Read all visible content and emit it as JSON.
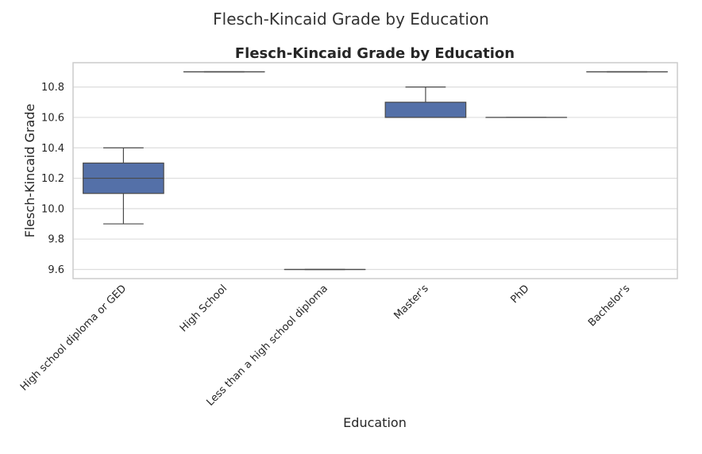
{
  "figure": {
    "suptitle": "Flesch-Kincaid Grade by Education"
  },
  "chart_data": {
    "type": "box",
    "title": "Flesch-Kincaid Grade by Education",
    "xlabel": "Education",
    "ylabel": "Flesch-Kincaid Grade",
    "ylim": [
      9.54,
      10.96
    ],
    "yticks": [
      9.6,
      9.8,
      10.0,
      10.2,
      10.4,
      10.6,
      10.8
    ],
    "ytick_labels": [
      "9.6",
      "9.8",
      "10.0",
      "10.2",
      "10.4",
      "10.6",
      "10.8"
    ],
    "grid": true,
    "categories": [
      "High school diploma or GED",
      "High School",
      "Less than a high school diploma",
      "Master's",
      "PhD",
      "Bachelor's"
    ],
    "boxes": [
      {
        "whisker_low": 9.9,
        "q1": 10.1,
        "median": 10.2,
        "q3": 10.3,
        "whisker_high": 10.4
      },
      {
        "whisker_low": 10.9,
        "q1": 10.9,
        "median": 10.9,
        "q3": 10.9,
        "whisker_high": 10.9
      },
      {
        "whisker_low": 9.6,
        "q1": 9.6,
        "median": 9.6,
        "q3": 9.6,
        "whisker_high": 9.6
      },
      {
        "whisker_low": 10.6,
        "q1": 10.6,
        "median": 10.6,
        "q3": 10.7,
        "whisker_high": 10.8
      },
      {
        "whisker_low": 10.6,
        "q1": 10.6,
        "median": 10.6,
        "q3": 10.6,
        "whisker_high": 10.6
      },
      {
        "whisker_low": 10.9,
        "q1": 10.9,
        "median": 10.9,
        "q3": 10.9,
        "whisker_high": 10.9
      }
    ],
    "colors": {
      "box_fill": "#5470a8",
      "line": "#4a4a4a",
      "grid": "#dddddd",
      "frame": "#cccccc",
      "text": "#262626"
    }
  }
}
